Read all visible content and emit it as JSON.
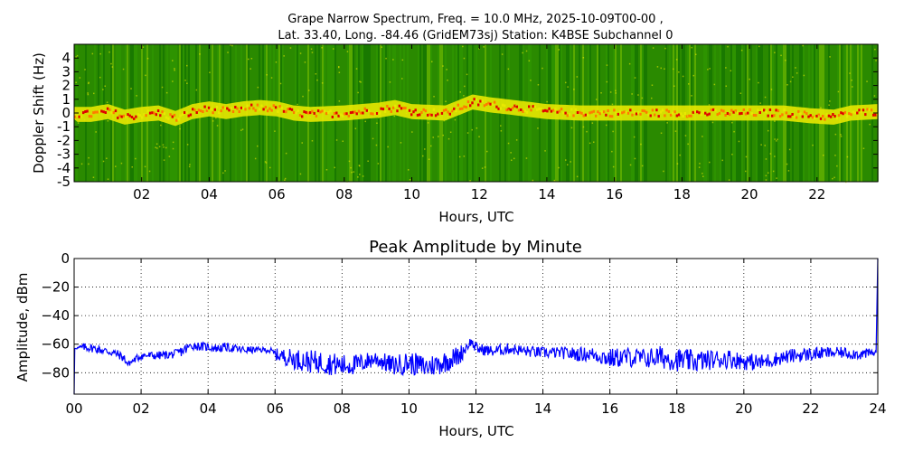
{
  "chart_data": [
    {
      "type": "heatmap",
      "title_line1": "Grape Narrow Spectrum, Freq. = 10.0 MHz, 2025-10-09T00-00 ,",
      "title_line2": "Lat.  33.40, Long. -84.46 (GridEM73sj) Station: K4BSE Subchannel 0",
      "xlabel": "Hours, UTC",
      "ylabel": "Doppler Shift (Hz)",
      "xlim": [
        0,
        23.8
      ],
      "ylim": [
        -5,
        5
      ],
      "x_ticks": [
        "02",
        "04",
        "06",
        "08",
        "10",
        "12",
        "14",
        "16",
        "18",
        "20",
        "22"
      ],
      "x_tick_values": [
        2,
        4,
        6,
        8,
        10,
        12,
        14,
        16,
        18,
        20,
        22
      ],
      "y_ticks": [
        "4",
        "3",
        "2",
        "1",
        "0",
        "-1",
        "-2",
        "-3",
        "-4",
        "-5"
      ],
      "y_tick_values": [
        4,
        3,
        2,
        1,
        0,
        -1,
        -2,
        -3,
        -4,
        -5
      ],
      "colormap": [
        "#0b6b00",
        "#2f9a00",
        "#7fc400",
        "#e8e800",
        "#ff7a00",
        "#e00000"
      ],
      "background_color": "#2a8a00",
      "carrier_trace": [
        {
          "x": 0.0,
          "y": -0.1
        },
        {
          "x": 0.5,
          "y": -0.1
        },
        {
          "x": 1.0,
          "y": 0.1
        },
        {
          "x": 1.5,
          "y": -0.3
        },
        {
          "x": 2.0,
          "y": -0.1
        },
        {
          "x": 2.5,
          "y": 0.0
        },
        {
          "x": 3.0,
          "y": -0.4
        },
        {
          "x": 3.5,
          "y": 0.1
        },
        {
          "x": 4.0,
          "y": 0.3
        },
        {
          "x": 4.5,
          "y": 0.1
        },
        {
          "x": 5.0,
          "y": 0.3
        },
        {
          "x": 5.5,
          "y": 0.4
        },
        {
          "x": 6.0,
          "y": 0.3
        },
        {
          "x": 6.5,
          "y": 0.0
        },
        {
          "x": 7.0,
          "y": -0.1
        },
        {
          "x": 8.0,
          "y": 0.0
        },
        {
          "x": 9.0,
          "y": 0.2
        },
        {
          "x": 9.5,
          "y": 0.4
        },
        {
          "x": 10.0,
          "y": 0.1
        },
        {
          "x": 11.0,
          "y": 0.0
        },
        {
          "x": 11.8,
          "y": 0.8
        },
        {
          "x": 12.3,
          "y": 0.6
        },
        {
          "x": 13.0,
          "y": 0.4
        },
        {
          "x": 14.0,
          "y": 0.1
        },
        {
          "x": 15.0,
          "y": 0.0
        },
        {
          "x": 16.0,
          "y": 0.0
        },
        {
          "x": 17.0,
          "y": 0.0
        },
        {
          "x": 18.0,
          "y": 0.0
        },
        {
          "x": 19.0,
          "y": 0.0
        },
        {
          "x": 20.0,
          "y": 0.0
        },
        {
          "x": 21.0,
          "y": 0.0
        },
        {
          "x": 21.8,
          "y": -0.2
        },
        {
          "x": 22.5,
          "y": -0.3
        },
        {
          "x": 23.0,
          "y": 0.0
        },
        {
          "x": 23.8,
          "y": 0.1
        }
      ]
    },
    {
      "type": "line",
      "title": "Peak Amplitude by Minute",
      "xlabel": "Hours, UTC",
      "ylabel": "Amplitude, dBm",
      "xlim": [
        0,
        24
      ],
      "ylim": [
        -95,
        0
      ],
      "grid": true,
      "line_color": "#0000ff",
      "x_ticks": [
        "00",
        "02",
        "04",
        "06",
        "08",
        "10",
        "12",
        "14",
        "16",
        "18",
        "20",
        "22",
        "24"
      ],
      "x_tick_values": [
        0,
        2,
        4,
        6,
        8,
        10,
        12,
        14,
        16,
        18,
        20,
        22,
        24
      ],
      "y_ticks": [
        "0",
        "−20",
        "−40",
        "−60",
        "−80"
      ],
      "y_tick_values": [
        0,
        -20,
        -40,
        -60,
        -80
      ],
      "series": [
        {
          "x": [
            0.0,
            0.02,
            0.3,
            0.6,
            1.0,
            1.3,
            1.5,
            1.6,
            2.0,
            2.5,
            3.0,
            3.3,
            3.5,
            4.0,
            4.3,
            4.5,
            5.0,
            5.5,
            5.8,
            6.0,
            6.5,
            7.0,
            7.5,
            8.0,
            8.5,
            9.0,
            9.5,
            10.0,
            10.5,
            11.0,
            11.5,
            11.85,
            12.0,
            12.5,
            13.0,
            13.5,
            14.0,
            14.5,
            15.0,
            15.5,
            16.0,
            16.5,
            17.0,
            17.5,
            18.0,
            18.5,
            19.0,
            19.5,
            20.0,
            20.5,
            21.0,
            21.5,
            22.0,
            22.5,
            23.0,
            23.5,
            23.95,
            24.0
          ],
          "y": [
            -95,
            -63,
            -62,
            -63,
            -65,
            -67,
            -70,
            -74,
            -68,
            -68,
            -67,
            -64,
            -61,
            -62,
            -63,
            -62,
            -64,
            -64,
            -64,
            -67,
            -70,
            -72,
            -73,
            -75,
            -74,
            -70,
            -75,
            -73,
            -76,
            -73,
            -68,
            -58,
            -63,
            -65,
            -63,
            -65,
            -66,
            -66,
            -67,
            -67,
            -70,
            -69,
            -70,
            -69,
            -71,
            -72,
            -71,
            -70,
            -72,
            -73,
            -70,
            -68,
            -67,
            -66,
            -66,
            -67,
            -66,
            0
          ],
          "jitter": [
            0,
            0,
            3,
            3,
            3,
            3,
            3,
            2,
            3,
            3,
            3,
            4,
            3,
            3,
            3,
            3,
            3,
            2,
            2,
            4,
            7,
            8,
            8,
            8,
            7,
            6,
            7,
            8,
            8,
            8,
            7,
            3,
            4,
            4,
            4,
            4,
            4,
            4,
            5,
            5,
            7,
            7,
            7,
            8,
            8,
            8,
            7,
            7,
            6,
            6,
            5,
            5,
            5,
            4,
            4,
            4,
            3,
            0
          ]
        }
      ]
    }
  ]
}
